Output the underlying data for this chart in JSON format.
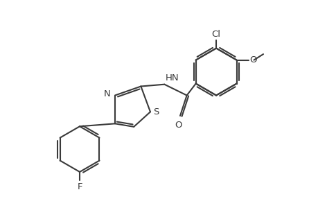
{
  "bg_color": "#ffffff",
  "line_color": "#3a3a3a",
  "line_width": 1.5,
  "dbo": 0.055,
  "font_size": 9.5,
  "fig_width": 4.6,
  "fig_height": 3.0,
  "dpi": 100,
  "xlim": [
    -0.5,
    6.0
  ],
  "ylim": [
    -3.2,
    2.0
  ]
}
